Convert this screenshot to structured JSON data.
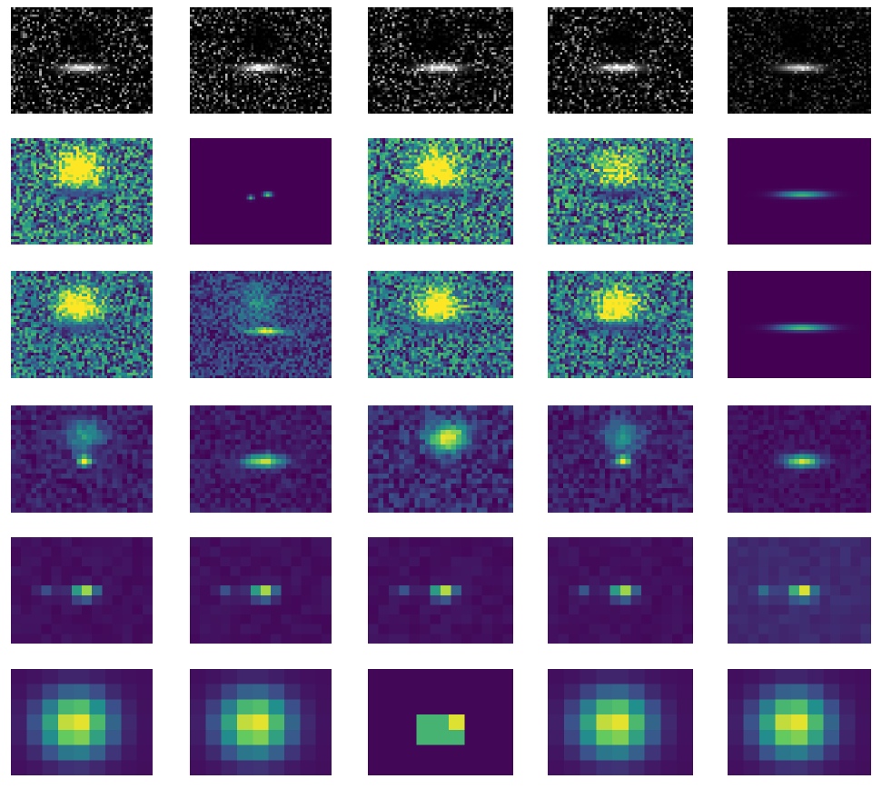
{
  "figure": {
    "colormaps": {
      "gray": [
        "#000000",
        "#ffffff"
      ],
      "viridis": [
        "#440154",
        "#3b528b",
        "#21918c",
        "#5ec962",
        "#fde725"
      ]
    },
    "rows": [
      {
        "colormap": "gray",
        "panels": [
          {
            "name": "sar-input-1"
          },
          {
            "name": "sar-input-2"
          },
          {
            "name": "sar-input-3"
          },
          {
            "name": "sar-input-4"
          },
          {
            "name": "sar-input-5"
          }
        ]
      },
      {
        "colormap": "viridis",
        "panels": [
          {
            "name": "feature-map-stage1-1"
          },
          {
            "name": "feature-map-stage1-2"
          },
          {
            "name": "feature-map-stage1-3"
          },
          {
            "name": "feature-map-stage1-4"
          },
          {
            "name": "feature-map-stage1-5"
          }
        ]
      },
      {
        "colormap": "viridis",
        "panels": [
          {
            "name": "feature-map-stage2-1"
          },
          {
            "name": "feature-map-stage2-2"
          },
          {
            "name": "feature-map-stage2-3"
          },
          {
            "name": "feature-map-stage2-4"
          },
          {
            "name": "feature-map-stage2-5"
          }
        ]
      },
      {
        "colormap": "viridis",
        "panels": [
          {
            "name": "feature-map-stage3-1"
          },
          {
            "name": "feature-map-stage3-2"
          },
          {
            "name": "feature-map-stage3-3"
          },
          {
            "name": "feature-map-stage3-4"
          },
          {
            "name": "feature-map-stage3-5"
          }
        ]
      },
      {
        "colormap": "viridis",
        "panels": [
          {
            "name": "feature-map-stage4-1"
          },
          {
            "name": "feature-map-stage4-2"
          },
          {
            "name": "feature-map-stage4-3"
          },
          {
            "name": "feature-map-stage4-4"
          },
          {
            "name": "feature-map-stage4-5"
          }
        ]
      },
      {
        "colormap": "viridis",
        "panels": [
          {
            "name": "feature-map-stage5-1"
          },
          {
            "name": "feature-map-stage5-2"
          },
          {
            "name": "feature-map-stage5-3"
          },
          {
            "name": "feature-map-stage5-4"
          },
          {
            "name": "feature-map-stage5-5"
          }
        ]
      }
    ]
  }
}
